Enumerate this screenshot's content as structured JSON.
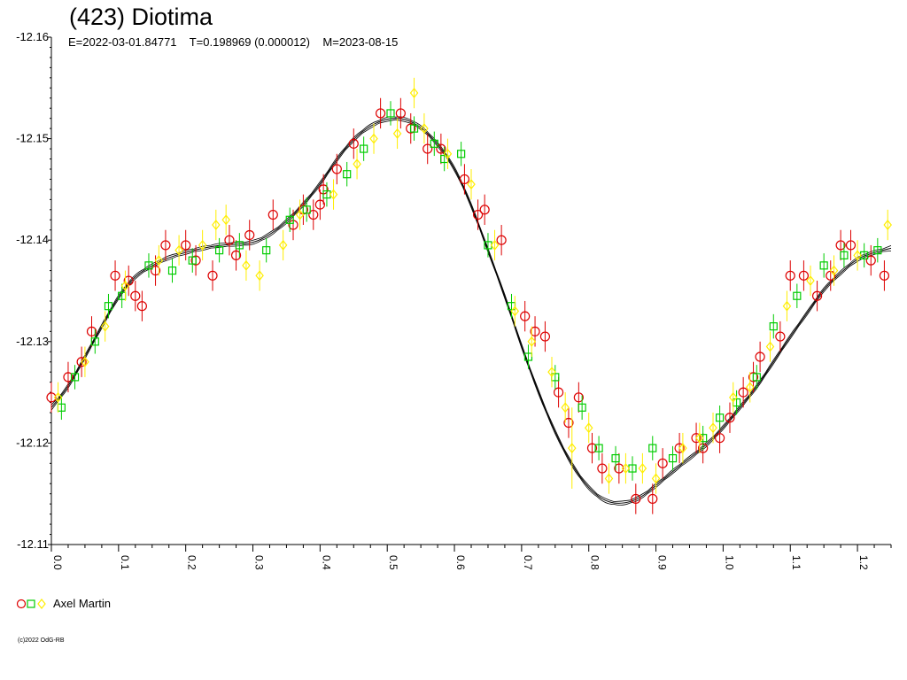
{
  "header": {
    "title": "(423) Diotima",
    "subtitle": "E=2022-03-01.84771    T=0.198969 (0.000012)    M=2023-08-15"
  },
  "legend": {
    "observer": "Axel Martin"
  },
  "footer": {
    "copyright": "(c)2022 OdG-RB"
  },
  "chart_data": {
    "type": "scatter",
    "title": "(423) Diotima",
    "xlabel": "",
    "ylabel": "",
    "xlim": [
      0.0,
      1.25
    ],
    "ylim": [
      -12.11,
      -12.16
    ],
    "y_reversed": true,
    "x_ticks": [
      0.0,
      0.1,
      0.2,
      0.3,
      0.4,
      0.5,
      0.6,
      0.7,
      0.8,
      0.9,
      1.0,
      1.1,
      1.2
    ],
    "x_tick_labels": [
      "0.0",
      "0.1",
      "0.2",
      "0.3",
      "0.4",
      "0.5",
      "0.6",
      "0.7",
      "0.8",
      "0.9",
      "1.0",
      "1.1",
      "1.2"
    ],
    "y_ticks": [
      -12.16,
      -12.15,
      -12.14,
      -12.13,
      -12.12,
      -12.11
    ],
    "y_tick_labels": [
      "-12.16",
      "-12.15",
      "-12.14",
      "-12.13",
      "-12.12",
      "-12.11"
    ],
    "colors": {
      "red": "#dd0000",
      "green": "#00cc00",
      "yellow": "#ffee00",
      "fit": "#000000"
    },
    "fit_curve": {
      "x": [
        0.0,
        0.025,
        0.05,
        0.075,
        0.1,
        0.125,
        0.15,
        0.175,
        0.2,
        0.225,
        0.25,
        0.275,
        0.3,
        0.325,
        0.35,
        0.375,
        0.4,
        0.425,
        0.45,
        0.475,
        0.5,
        0.525,
        0.55,
        0.575,
        0.6,
        0.625,
        0.65,
        0.675,
        0.7,
        0.725,
        0.75,
        0.775,
        0.8,
        0.825,
        0.85,
        0.875,
        0.9,
        0.925,
        0.95,
        0.975,
        1.0,
        1.025,
        1.05,
        1.075,
        1.1,
        1.125,
        1.15,
        1.175,
        1.2,
        1.225,
        1.25
      ],
      "y": [
        -12.1235,
        -12.1255,
        -12.1285,
        -12.1315,
        -12.1345,
        -12.1365,
        -12.1375,
        -12.1383,
        -12.1388,
        -12.1392,
        -12.1395,
        -12.1396,
        -12.1397,
        -12.1405,
        -12.1418,
        -12.1435,
        -12.1455,
        -12.148,
        -12.15,
        -12.1513,
        -12.152,
        -12.152,
        -12.1512,
        -12.1495,
        -12.1472,
        -12.1435,
        -12.139,
        -12.1345,
        -12.1295,
        -12.125,
        -12.121,
        -12.1178,
        -12.1155,
        -12.1142,
        -12.114,
        -12.1145,
        -12.1158,
        -12.1172,
        -12.1185,
        -12.1198,
        -12.1215,
        -12.1235,
        -12.1255,
        -12.128,
        -12.1305,
        -12.1328,
        -12.1352,
        -12.1368,
        -12.1382,
        -12.1388,
        -12.1392
      ]
    },
    "series": [
      {
        "name": "Axel Martin",
        "color": "#dd0000",
        "marker": "circle",
        "x": [
          0.0,
          0.025,
          0.045,
          0.06,
          0.095,
          0.115,
          0.125,
          0.135,
          0.155,
          0.17,
          0.2,
          0.215,
          0.24,
          0.265,
          0.275,
          0.295,
          0.33,
          0.36,
          0.375,
          0.39,
          0.4,
          0.405,
          0.425,
          0.45,
          0.49,
          0.52,
          0.535,
          0.56,
          0.58,
          0.615,
          0.635,
          0.645,
          0.67,
          0.705,
          0.72,
          0.735,
          0.755,
          0.77,
          0.785,
          0.805,
          0.82,
          0.845,
          0.87,
          0.895,
          0.91,
          0.935,
          0.96,
          0.97,
          0.995,
          1.01,
          1.03,
          1.045,
          1.055,
          1.085,
          1.1,
          1.12,
          1.14,
          1.16,
          1.175,
          1.19,
          1.22,
          1.24
        ],
        "y": [
          -12.1245,
          -12.1265,
          -12.128,
          -12.131,
          -12.1365,
          -12.136,
          -12.1345,
          -12.1335,
          -12.137,
          -12.1395,
          -12.1395,
          -12.138,
          -12.1365,
          -12.14,
          -12.1385,
          -12.1405,
          -12.1425,
          -12.1415,
          -12.143,
          -12.1425,
          -12.1435,
          -12.145,
          -12.147,
          -12.1495,
          -12.1525,
          -12.1525,
          -12.151,
          -12.149,
          -12.149,
          -12.146,
          -12.1425,
          -12.143,
          -12.14,
          -12.1325,
          -12.131,
          -12.1305,
          -12.125,
          -12.122,
          -12.1245,
          -12.1195,
          -12.1175,
          -12.1175,
          -12.1145,
          -12.1145,
          -12.118,
          -12.1195,
          -12.1205,
          -12.1195,
          -12.1205,
          -12.1225,
          -12.125,
          -12.1265,
          -12.1285,
          -12.1305,
          -12.1365,
          -12.1365,
          -12.1345,
          -12.1365,
          -12.1395,
          -12.1395,
          -12.138,
          -12.1365
        ],
        "err": [
          0.0015,
          0.0015,
          0.0015,
          0.0015,
          0.0015,
          0.0015,
          0.0015,
          0.0015,
          0.0015,
          0.0015,
          0.0015,
          0.0015,
          0.0015,
          0.0015,
          0.0015,
          0.0015,
          0.0015,
          0.0015,
          0.0015,
          0.0015,
          0.0015,
          0.0015,
          0.0015,
          0.0015,
          0.0015,
          0.0015,
          0.0015,
          0.0015,
          0.0015,
          0.0015,
          0.0015,
          0.0015,
          0.0015,
          0.0015,
          0.0015,
          0.0015,
          0.0015,
          0.0015,
          0.0015,
          0.0015,
          0.0015,
          0.0015,
          0.0015,
          0.0015,
          0.0015,
          0.0015,
          0.0015,
          0.0015,
          0.0015,
          0.0015,
          0.0015,
          0.0015,
          0.0015,
          0.0015,
          0.0015,
          0.0015,
          0.0015,
          0.0015,
          0.0015,
          0.0015,
          0.0015,
          0.0015
        ]
      },
      {
        "name": "Axel Martin",
        "color": "#00cc00",
        "marker": "square",
        "x": [
          0.015,
          0.035,
          0.065,
          0.085,
          0.105,
          0.145,
          0.18,
          0.21,
          0.25,
          0.28,
          0.32,
          0.355,
          0.38,
          0.41,
          0.44,
          0.465,
          0.505,
          0.54,
          0.57,
          0.585,
          0.61,
          0.65,
          0.685,
          0.71,
          0.75,
          0.79,
          0.815,
          0.84,
          0.865,
          0.895,
          0.925,
          0.97,
          0.995,
          1.02,
          1.05,
          1.075,
          1.11,
          1.15,
          1.18,
          1.21,
          1.23
        ],
        "y": [
          -12.1235,
          -12.1265,
          -12.13,
          -12.1335,
          -12.1345,
          -12.1375,
          -12.137,
          -12.138,
          -12.139,
          -12.1395,
          -12.139,
          -12.142,
          -12.143,
          -12.1445,
          -12.1465,
          -12.149,
          -12.1525,
          -12.151,
          -12.1495,
          -12.148,
          -12.1485,
          -12.1395,
          -12.1335,
          -12.1285,
          -12.1265,
          -12.1235,
          -12.1195,
          -12.1185,
          -12.1175,
          -12.1195,
          -12.1185,
          -12.1205,
          -12.1225,
          -12.124,
          -12.1265,
          -12.1315,
          -12.1345,
          -12.1375,
          -12.1385,
          -12.1385,
          -12.139
        ],
        "err": [
          0.0012,
          0.0012,
          0.0012,
          0.0012,
          0.0012,
          0.0012,
          0.0012,
          0.0012,
          0.0012,
          0.0012,
          0.0012,
          0.0012,
          0.0012,
          0.0012,
          0.0012,
          0.0012,
          0.0012,
          0.0012,
          0.0012,
          0.0012,
          0.0012,
          0.0012,
          0.0012,
          0.0012,
          0.0012,
          0.0012,
          0.0012,
          0.0012,
          0.0012,
          0.0012,
          0.0012,
          0.0012,
          0.0012,
          0.0012,
          0.0012,
          0.0012,
          0.0012,
          0.0012,
          0.0012,
          0.0012,
          0.0012
        ]
      },
      {
        "name": "Axel Martin",
        "color": "#ffee00",
        "marker": "diamond",
        "x": [
          0.01,
          0.05,
          0.08,
          0.11,
          0.16,
          0.19,
          0.225,
          0.245,
          0.26,
          0.29,
          0.31,
          0.345,
          0.37,
          0.42,
          0.455,
          0.48,
          0.515,
          0.54,
          0.555,
          0.59,
          0.625,
          0.66,
          0.69,
          0.715,
          0.745,
          0.765,
          0.775,
          0.8,
          0.83,
          0.855,
          0.88,
          0.9,
          0.94,
          0.965,
          0.985,
          1.015,
          1.04,
          1.07,
          1.095,
          1.13,
          1.165,
          1.2,
          1.245
        ],
        "y": [
          -12.1245,
          -12.128,
          -12.1315,
          -12.1355,
          -12.138,
          -12.139,
          -12.1395,
          -12.1415,
          -12.142,
          -12.1375,
          -12.1365,
          -12.1395,
          -12.1425,
          -12.1445,
          -12.1475,
          -12.15,
          -12.1505,
          -12.1545,
          -12.151,
          -12.1485,
          -12.1455,
          -12.1395,
          -12.133,
          -12.13,
          -12.127,
          -12.1235,
          -12.1195,
          -12.1215,
          -12.1165,
          -12.1175,
          -12.1175,
          -12.1165,
          -12.1195,
          -12.1205,
          -12.1215,
          -12.1245,
          -12.1255,
          -12.1295,
          -12.1335,
          -12.136,
          -12.137,
          -12.1385,
          -12.1415
        ],
        "err": [
          0.0015,
          0.0015,
          0.0015,
          0.0015,
          0.0015,
          0.0015,
          0.0015,
          0.0015,
          0.0015,
          0.0015,
          0.0015,
          0.0015,
          0.0015,
          0.0015,
          0.0015,
          0.0015,
          0.0015,
          0.0015,
          0.0015,
          0.0015,
          0.0015,
          0.0015,
          0.0015,
          0.0015,
          0.0015,
          0.0015,
          0.004,
          0.0015,
          0.0015,
          0.0015,
          0.0015,
          0.0015,
          0.0015,
          0.0015,
          0.0015,
          0.0015,
          0.0015,
          0.0015,
          0.0015,
          0.0015,
          0.0015,
          0.0015,
          0.0015
        ]
      }
    ]
  }
}
